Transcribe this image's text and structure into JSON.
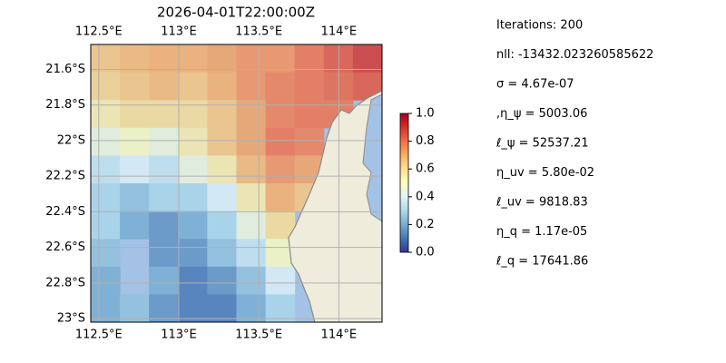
{
  "chart_data": {
    "type": "map",
    "title": "2026-04-01T22:00:00Z",
    "xlim": [
      112.45,
      114.27
    ],
    "ylim": [
      -23.02,
      -21.46
    ],
    "xticks": [
      {
        "value": 112.5,
        "label": "112.5°E"
      },
      {
        "value": 113,
        "label": "113°E"
      },
      {
        "value": 113.5,
        "label": "113.5°E"
      },
      {
        "value": 114,
        "label": "114°E"
      }
    ],
    "yticks": [
      {
        "value": -21.6,
        "label": "21.6°S"
      },
      {
        "value": -21.8,
        "label": "21.8°S"
      },
      {
        "value": -22,
        "label": "22°S"
      },
      {
        "value": -22.2,
        "label": "22.2°S"
      },
      {
        "value": -22.4,
        "label": "22.4°S"
      },
      {
        "value": -22.6,
        "label": "22.6°S"
      },
      {
        "value": -22.8,
        "label": "22.8°S"
      },
      {
        "value": -23,
        "label": "23°S"
      }
    ],
    "grid": true,
    "values": [
      [
        0.65,
        0.68,
        0.7,
        0.7,
        0.72,
        0.75,
        0.75,
        0.8,
        0.85,
        0.9
      ],
      [
        0.62,
        0.65,
        0.68,
        0.65,
        0.7,
        0.75,
        0.78,
        0.8,
        0.82,
        0.85
      ],
      [
        0.55,
        0.6,
        0.6,
        0.6,
        0.65,
        0.72,
        0.78,
        0.8,
        0.8,
        null
      ],
      [
        0.45,
        0.5,
        0.45,
        0.55,
        0.65,
        0.72,
        0.8,
        0.78,
        null,
        null
      ],
      [
        0.35,
        0.4,
        0.35,
        0.45,
        0.55,
        0.68,
        0.75,
        0.72,
        null,
        null
      ],
      [
        0.3,
        0.25,
        0.3,
        0.3,
        0.4,
        0.55,
        0.7,
        0.65,
        null,
        null
      ],
      [
        0.3,
        0.2,
        0.15,
        0.2,
        0.3,
        0.45,
        0.6,
        null,
        null,
        null
      ],
      [
        0.25,
        null,
        0.15,
        0.15,
        0.25,
        0.35,
        0.5,
        null,
        null,
        null
      ],
      [
        0.2,
        null,
        0.2,
        0.1,
        0.15,
        0.25,
        0.4,
        null,
        null,
        null
      ],
      [
        0.2,
        0.25,
        0.15,
        0.1,
        0.1,
        0.2,
        0.3,
        null,
        null,
        null
      ]
    ],
    "colormap": [
      "#313695",
      "#4575b4",
      "#74add1",
      "#abd9e9",
      "#e0f3f8",
      "#ffffbf",
      "#fee090",
      "#fdae61",
      "#f46d43",
      "#d73027",
      "#a50026"
    ],
    "colorbar": {
      "lim": [
        0,
        1
      ],
      "ticks": [
        {
          "value": 0,
          "label": "0.0"
        },
        {
          "value": 0.2,
          "label": "0.2"
        },
        {
          "value": 0.4,
          "label": "0.4"
        },
        {
          "value": 0.6,
          "label": "0.6"
        },
        {
          "value": 0.8,
          "label": "0.8"
        },
        {
          "value": 1,
          "label": "1.0"
        }
      ]
    },
    "annotations": [
      "Iterations: 200",
      "nll: -13432.023260585622",
      "σ = 4.67e-07",
      ",η_ψ = 5003.06",
      "ℓ_ψ = 52537.21",
      "η_uv = 5.80e-02",
      "ℓ_uv = 9818.83",
      "η_q = 1.17e-05",
      "ℓ_q = 17641.86"
    ]
  }
}
